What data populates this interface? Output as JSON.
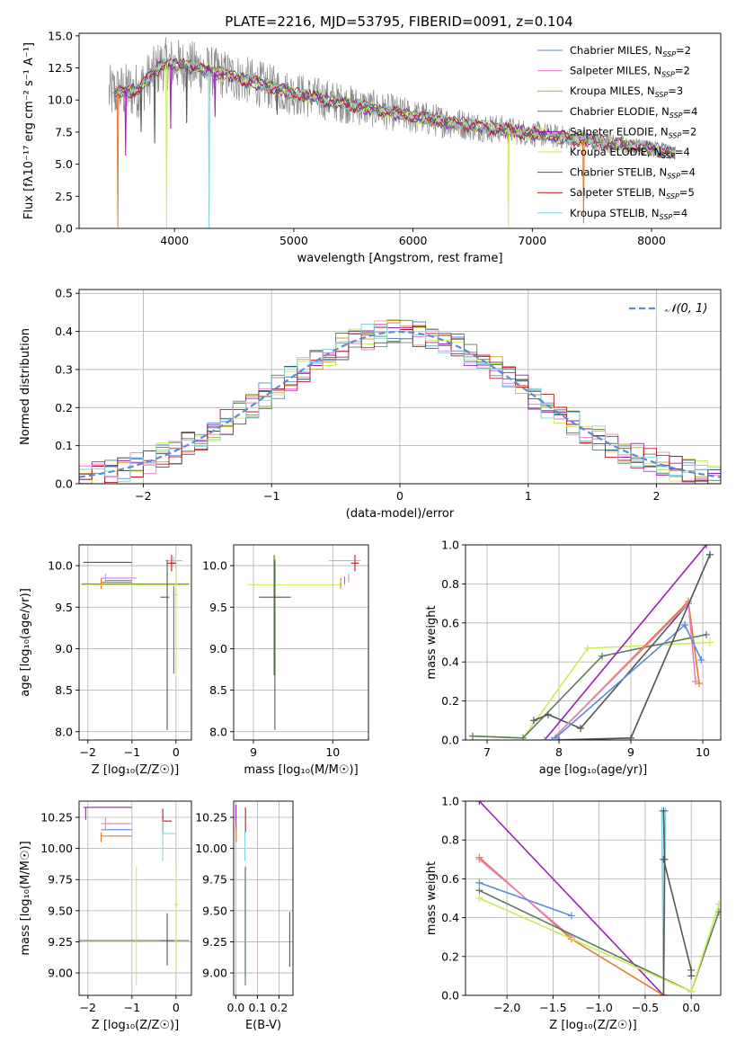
{
  "figure": {
    "title": "PLATE=2216, MJD=53795, FIBERID=0091, z=0.104"
  },
  "colors": {
    "Chabrier MILES": "#5b8bd8",
    "Salpeter MILES": "#e77fc8",
    "Kroupa MILES": "#c8a028",
    "Chabrier ELODIE": "#5a7d5a",
    "Salpeter ELODIE": "#9b1fb8",
    "Kroupa ELODIE": "#cdeb5a",
    "Chabrier STELIB": "#555555",
    "Salpeter STELIB": "#c0151c",
    "Kroupa STELIB": "#7fd6e0",
    "orange": "#e67a27",
    "normal_curve": "#5b8bd8"
  },
  "chart_data": [
    {
      "id": "spectrum",
      "type": "line",
      "title": "PLATE=2216, MJD=53795, FIBERID=0091, z=0.104",
      "xlabel": "wavelength [Angstrom, rest frame]",
      "ylabel": "Flux [fλ10⁻¹⁷ erg cm⁻² s⁻¹ A⁻¹]",
      "xlim": [
        3200,
        8580
      ],
      "ylim": [
        0,
        15.2
      ],
      "xticks": [
        4000,
        5000,
        6000,
        7000,
        8000
      ],
      "yticks": [
        0.0,
        2.5,
        5.0,
        7.5,
        10.0,
        12.5,
        15.0
      ],
      "grid": false,
      "legend_position": "upper-right",
      "legend": [
        {
          "model": "Chabrier MILES",
          "n": "2"
        },
        {
          "model": "Salpeter MILES",
          "n": "2"
        },
        {
          "model": "Kroupa MILES",
          "n": "3"
        },
        {
          "model": "Chabrier ELODIE",
          "n": "4"
        },
        {
          "model": "Salpeter ELODIE",
          "n": "2"
        },
        {
          "model": "Kroupa ELODIE",
          "n": "4"
        },
        {
          "model": "Chabrier STELIB",
          "n": "4"
        },
        {
          "model": "Salpeter STELIB",
          "n": "5"
        },
        {
          "model": "Kroupa STELIB",
          "n": "4"
        }
      ],
      "continuum": {
        "x": [
          3450,
          3700,
          3900,
          4100,
          4500,
          5000,
          5500,
          6000,
          6500,
          7000,
          7500,
          8000,
          8200
        ],
        "y": [
          10.5,
          10.8,
          12.8,
          12.7,
          11.8,
          10.5,
          9.6,
          8.7,
          8.0,
          7.4,
          6.8,
          6.2,
          5.9
        ]
      },
      "noisy_data": {
        "x_range": [
          3450,
          8200
        ],
        "noise_amplitude_blue": 2.3,
        "noise_amplitude_red": 0.6
      },
      "absorption_dips": [
        {
          "x": 3525,
          "depth": 10.5,
          "model": "orange"
        },
        {
          "x": 3590,
          "depth": 5.0,
          "model": "Salpeter ELODIE"
        },
        {
          "x": 3720,
          "depth": 3.5,
          "model": "Chabrier STELIB"
        },
        {
          "x": 3834,
          "depth": 5.5,
          "model": "Chabrier STELIB"
        },
        {
          "x": 3934,
          "depth": 13.0,
          "model": "Kroupa ELODIE"
        },
        {
          "x": 3968,
          "depth": 5.0,
          "model": "Salpeter ELODIE"
        },
        {
          "x": 4102,
          "depth": 4.5,
          "model": "Chabrier STELIB"
        },
        {
          "x": 4290,
          "depth": 12.5,
          "model": "Kroupa STELIB"
        },
        {
          "x": 4340,
          "depth": 3.5,
          "model": "Salpeter ELODIE"
        },
        {
          "x": 4861,
          "depth": 2.0,
          "model": "Chabrier STELIB"
        },
        {
          "x": 6800,
          "depth": 7.5,
          "model": "Kroupa ELODIE"
        },
        {
          "x": 7430,
          "depth": 6.5,
          "model": "orange"
        }
      ]
    },
    {
      "id": "residuals",
      "type": "histogram",
      "xlabel": "(data-model)/error",
      "ylabel": "Normed distribution",
      "xlim": [
        -2.5,
        2.5
      ],
      "ylim": [
        0,
        0.51
      ],
      "xticks": [
        -2,
        -1,
        0,
        1,
        2
      ],
      "yticks": [
        0.0,
        0.1,
        0.2,
        0.3,
        0.4,
        0.5
      ],
      "grid": true,
      "legend_position": "upper-right",
      "legend": [
        {
          "label": "𝒩(0, 1)"
        }
      ],
      "bin_width": 0.1,
      "models": [
        "Chabrier MILES",
        "Salpeter MILES",
        "Kroupa MILES",
        "Chabrier ELODIE",
        "Salpeter ELODIE",
        "Kroupa ELODIE",
        "Chabrier STELIB",
        "Salpeter STELIB",
        "Kroupa STELIB"
      ],
      "normal_curve": {
        "mean": 0,
        "sigma": 1
      }
    },
    {
      "id": "age_vs_Z",
      "type": "errorbar",
      "xlabel": "Z [log₁₀(Z/Z☉)]",
      "ylabel": "age  [log₁₀(age/yr)]",
      "xlim": [
        -2.2,
        0.35
      ],
      "ylim": [
        7.9,
        10.25
      ],
      "xticks": [
        -2,
        -1,
        0
      ],
      "yticks": [
        8.0,
        8.5,
        9.0,
        9.5,
        10.0
      ],
      "grid": true,
      "points": [
        {
          "model": "Salpeter ELODIE",
          "x": -2.05,
          "xerr": [
            0.05,
            1.05
          ],
          "y": 10.04,
          "yerr": [
            0.0,
            0.0
          ]
        },
        {
          "model": "Salpeter MILES",
          "x": -1.6,
          "xerr": [
            0.1,
            0.7
          ],
          "y": 9.85,
          "yerr": [
            0.05,
            0.05
          ]
        },
        {
          "model": "Chabrier MILES",
          "x": -1.6,
          "xerr": [
            0.0,
            0.6
          ],
          "y": 9.82,
          "yerr": [
            0.0,
            0.0
          ]
        },
        {
          "model": "orange",
          "x": -1.7,
          "xerr": [
            0.0,
            0.7
          ],
          "y": 9.8,
          "yerr": [
            0.08,
            0.05
          ]
        },
        {
          "model": "Chabrier ELODIE",
          "x": -0.8,
          "xerr": [
            1.35,
            1.1
          ],
          "y": 9.78,
          "yerr": [
            0.0,
            0.0
          ]
        },
        {
          "model": "Kroupa ELODIE",
          "x": -0.9,
          "xerr": [
            1.25,
            1.2
          ],
          "y": 9.77,
          "yerr": [
            0.0,
            0.0
          ]
        },
        {
          "model": "Kroupa STELIB",
          "x": -0.05,
          "xerr": [
            0.2,
            0.2
          ],
          "y": 10.06,
          "yerr": [
            0.05,
            0.05
          ]
        },
        {
          "model": "Salpeter STELIB",
          "x": -0.1,
          "xerr": [
            0.1,
            0.1
          ],
          "y": 10.03,
          "yerr": [
            0.1,
            0.1
          ]
        },
        {
          "model": "Chabrier STELIB",
          "x": -0.2,
          "xerr": [
            0.15,
            0.05
          ],
          "y": 9.62,
          "yerr": [
            1.6,
            0.45
          ]
        },
        {
          "model": "Kroupa ELODIE",
          "x": 0.0,
          "xerr": [
            0.05,
            0.05
          ],
          "y": 9.65,
          "yerr": [
            1.0,
            0.3
          ]
        },
        {
          "model": "Chabrier ELODIE",
          "x": -0.05,
          "xerr": [
            0.0,
            0.0
          ],
          "y": 9.3,
          "yerr": [
            0.6,
            0.45
          ]
        }
      ]
    },
    {
      "id": "age_vs_mass",
      "type": "errorbar",
      "xlabel": "mass [log₁₀(M/M☉)]",
      "ylabel": "",
      "xlim": [
        8.75,
        10.45
      ],
      "ylim": [
        7.9,
        10.25
      ],
      "xticks": [
        9,
        10
      ],
      "yticks": [
        8.0,
        8.5,
        9.0,
        9.5,
        10.0
      ],
      "grid": true,
      "points": [
        {
          "model": "Kroupa ELODIE",
          "x": 9.27,
          "xerr": [
            0.35,
            0.85
          ],
          "y": 9.77,
          "yerr": [
            1.1,
            0.35
          ]
        },
        {
          "model": "Chabrier ELODIE",
          "x": 9.26,
          "xerr": [
            0.0,
            0.0
          ],
          "y": 9.78,
          "yerr": [
            1.1,
            0.35
          ]
        },
        {
          "model": "Chabrier STELIB",
          "x": 9.27,
          "xerr": [
            0.2,
            0.2
          ],
          "y": 9.62,
          "yerr": [
            1.6,
            0.45
          ]
        },
        {
          "model": "Kroupa STELIB",
          "x": 10.2,
          "xerr": [
            0.25,
            0.15
          ],
          "y": 10.06,
          "yerr": [
            0.0,
            0.0
          ]
        },
        {
          "model": "Salpeter STELIB",
          "x": 10.28,
          "xerr": [
            0.05,
            0.05
          ],
          "y": 10.03,
          "yerr": [
            0.1,
            0.1
          ]
        },
        {
          "model": "Chabrier MILES",
          "x": 10.15,
          "xerr": [
            0.0,
            0.0
          ],
          "y": 9.82,
          "yerr": [
            0.05,
            0.05
          ]
        },
        {
          "model": "Salpeter MILES",
          "x": 10.2,
          "xerr": [
            0.0,
            0.0
          ],
          "y": 9.85,
          "yerr": [
            0.05,
            0.05
          ]
        },
        {
          "model": "orange",
          "x": 10.1,
          "xerr": [
            0.0,
            0.0
          ],
          "y": 9.8,
          "yerr": [
            0.08,
            0.05
          ]
        },
        {
          "model": "Salpeter ELODIE",
          "x": 10.33,
          "xerr": [
            0.0,
            0.0
          ],
          "y": 10.04,
          "yerr": [
            0.0,
            0.0
          ]
        }
      ]
    },
    {
      "id": "mass_weight_vs_age",
      "type": "line",
      "xlabel": "age  [log₁₀(age/yr)]",
      "ylabel": "mass weight",
      "xlim": [
        6.7,
        10.25
      ],
      "ylim": [
        0,
        1.0
      ],
      "xticks": [
        7,
        8,
        9,
        10
      ],
      "yticks": [
        0.0,
        0.2,
        0.4,
        0.6,
        0.8,
        1.0
      ],
      "grid": true,
      "series": [
        {
          "model": "Kroupa ELODIE",
          "x": [
            6.8,
            7.5,
            8.4,
            10.1
          ],
          "y": [
            0.02,
            0.01,
            0.47,
            0.5
          ]
        },
        {
          "model": "Chabrier ELODIE",
          "x": [
            6.8,
            7.5,
            8.6,
            10.05
          ],
          "y": [
            0.02,
            0.01,
            0.43,
            0.54
          ]
        },
        {
          "model": "Chabrier STELIB",
          "x": [
            7.65,
            7.85,
            8.3,
            9.8
          ],
          "y": [
            0.1,
            0.13,
            0.06,
            0.7
          ]
        },
        {
          "model": "Salpeter ELODIE",
          "x": [
            7.8,
            10.05
          ],
          "y": [
            0.0,
            1.0
          ]
        },
        {
          "model": "orange",
          "x": [
            7.9,
            9.8,
            9.95
          ],
          "y": [
            0.0,
            0.71,
            0.29
          ]
        },
        {
          "model": "Salpeter MILES",
          "x": [
            7.9,
            9.8,
            9.9
          ],
          "y": [
            0.0,
            0.7,
            0.3
          ]
        },
        {
          "model": "Chabrier MILES",
          "x": [
            7.95,
            9.75,
            9.98
          ],
          "y": [
            0.01,
            0.59,
            0.41
          ]
        },
        {
          "model": "Kroupa STELIB",
          "x": [
            7.8,
            9.0,
            10.1
          ],
          "y": [
            0.0,
            0.01,
            0.95
          ]
        },
        {
          "model": "Chabrier STELIB",
          "x": [
            8.0,
            9.0,
            10.1
          ],
          "y": [
            0.0,
            0.01,
            0.95
          ]
        }
      ]
    },
    {
      "id": "mass_vs_Z",
      "type": "errorbar",
      "xlabel": "Z [log₁₀(Z/Z☉)]",
      "ylabel": "mass [log₁₀(M/M☉)]",
      "xlim": [
        -2.2,
        0.35
      ],
      "ylim": [
        8.82,
        10.38
      ],
      "xticks": [
        -2,
        -1,
        0
      ],
      "yticks": [
        9.0,
        9.25,
        9.5,
        9.75,
        10.0,
        10.25
      ],
      "grid": true,
      "points": [
        {
          "model": "Salpeter ELODIE",
          "x": -2.05,
          "xerr": [
            0.05,
            1.05
          ],
          "y": 10.33,
          "yerr": [
            0.1,
            0.0
          ]
        },
        {
          "model": "Salpeter MILES",
          "x": -1.6,
          "xerr": [
            0.1,
            0.6
          ],
          "y": 10.2,
          "yerr": [
            0.05,
            0.05
          ]
        },
        {
          "model": "Chabrier MILES",
          "x": -1.6,
          "xerr": [
            0.1,
            0.6
          ],
          "y": 10.15,
          "yerr": [
            0.0,
            0.0
          ]
        },
        {
          "model": "orange",
          "x": -1.7,
          "xerr": [
            0.0,
            0.7
          ],
          "y": 10.1,
          "yerr": [
            0.05,
            0.03
          ]
        },
        {
          "model": "Salpeter STELIB",
          "x": -0.3,
          "xerr": [
            0.0,
            0.2
          ],
          "y": 10.22,
          "yerr": [
            0.1,
            0.1
          ]
        },
        {
          "model": "Kroupa STELIB",
          "x": -0.3,
          "xerr": [
            0.0,
            0.3
          ],
          "y": 10.12,
          "yerr": [
            0.22,
            0.1
          ]
        },
        {
          "model": "Chabrier ELODIE",
          "x": -1.0,
          "xerr": [
            1.2,
            1.3
          ],
          "y": 9.26,
          "yerr": [
            0.0,
            0.0
          ]
        },
        {
          "model": "Kroupa ELODIE",
          "x": -0.9,
          "xerr": [
            1.25,
            1.2
          ],
          "y": 9.25,
          "yerr": [
            0.35,
            0.6
          ]
        },
        {
          "model": "Chabrier STELIB",
          "x": -0.2,
          "xerr": [
            0.15,
            0.15
          ],
          "y": 9.26,
          "yerr": [
            0.2,
            0.22
          ]
        },
        {
          "model": "Kroupa ELODIE",
          "x": 0.0,
          "xerr": [
            0.05,
            0.05
          ],
          "y": 9.55,
          "yerr": [
            0.55,
            0.3
          ]
        }
      ]
    },
    {
      "id": "mass_vs_ebv",
      "type": "errorbar",
      "xlabel": "E(B-V)",
      "ylabel": "",
      "xlim": [
        -0.01,
        0.265
      ],
      "ylim": [
        8.82,
        10.38
      ],
      "xticks": [
        0.0,
        0.1,
        0.2
      ],
      "yticks": [
        9.0,
        9.25,
        9.5,
        9.75,
        10.0,
        10.25
      ],
      "grid": true,
      "points": [
        {
          "model": "Salpeter ELODIE",
          "x": 0.001,
          "xerr": [
            0.0,
            0.0
          ],
          "y": 10.25,
          "yerr": [
            0.1,
            0.1
          ]
        },
        {
          "model": "orange",
          "x": 0.002,
          "xerr": [
            0.0,
            0.0
          ],
          "y": 10.15,
          "yerr": [
            0.1,
            0.05
          ]
        },
        {
          "model": "Salpeter STELIB",
          "x": 0.045,
          "xerr": [
            0.0,
            0.0
          ],
          "y": 10.23,
          "yerr": [
            0.1,
            0.1
          ]
        },
        {
          "model": "Kroupa STELIB",
          "x": 0.042,
          "xerr": [
            0.0,
            0.0
          ],
          "y": 10.05,
          "yerr": [
            0.15,
            0.1
          ]
        },
        {
          "model": "Kroupa ELODIE",
          "x": 0.046,
          "xerr": [
            0.0,
            0.0
          ],
          "y": 9.42,
          "yerr": [
            0.45,
            0.45
          ]
        },
        {
          "model": "Chabrier ELODIE",
          "x": 0.044,
          "xerr": [
            0.0,
            0.0
          ],
          "y": 9.3,
          "yerr": [
            0.4,
            0.55
          ]
        },
        {
          "model": "Chabrier STELIB",
          "x": 0.25,
          "xerr": [
            0.0,
            0.0
          ],
          "y": 9.27,
          "yerr": [
            0.22,
            0.22
          ]
        }
      ]
    },
    {
      "id": "mass_weight_vs_Z",
      "type": "line",
      "xlabel": "Z [log₁₀(Z/Z☉)]",
      "ylabel": "mass weight",
      "xlim": [
        -2.45,
        0.32
      ],
      "ylim": [
        0,
        1.0
      ],
      "xticks": [
        -2.0,
        -1.5,
        -1.0,
        -0.5,
        0.0
      ],
      "yticks": [
        0.0,
        0.2,
        0.4,
        0.6,
        0.8,
        1.0
      ],
      "grid": true,
      "series": [
        {
          "model": "Salpeter ELODIE",
          "x": [
            -2.3,
            -0.3
          ],
          "y": [
            1.0,
            0.0
          ]
        },
        {
          "model": "orange",
          "x": [
            -2.3,
            -1.3,
            -0.3
          ],
          "y": [
            0.71,
            0.29,
            0.0
          ]
        },
        {
          "model": "Salpeter MILES",
          "x": [
            -2.3,
            -1.3
          ],
          "y": [
            0.7,
            0.3
          ]
        },
        {
          "model": "Chabrier MILES",
          "x": [
            -2.3,
            -1.3
          ],
          "y": [
            0.58,
            0.41
          ]
        },
        {
          "model": "Chabrier ELODIE",
          "x": [
            -2.3,
            0.0,
            0.3
          ],
          "y": [
            0.54,
            0.02,
            0.43
          ]
        },
        {
          "model": "Kroupa ELODIE",
          "x": [
            -2.3,
            0.0,
            0.3
          ],
          "y": [
            0.5,
            0.02,
            0.47
          ]
        },
        {
          "model": "Kroupa STELIB",
          "x": [
            -0.32,
            -0.3,
            -0.28
          ],
          "y": [
            0.95,
            0.0,
            0.95
          ]
        },
        {
          "model": "Chabrier STELIB",
          "x": [
            -0.3,
            -0.29,
            -0.3
          ],
          "y": [
            0.95,
            0.7,
            0.0
          ]
        },
        {
          "model": "Chabrier STELIB",
          "x": [
            -0.3,
            0.0,
            0.0
          ],
          "y": [
            0.7,
            0.13,
            0.1
          ]
        }
      ]
    }
  ]
}
